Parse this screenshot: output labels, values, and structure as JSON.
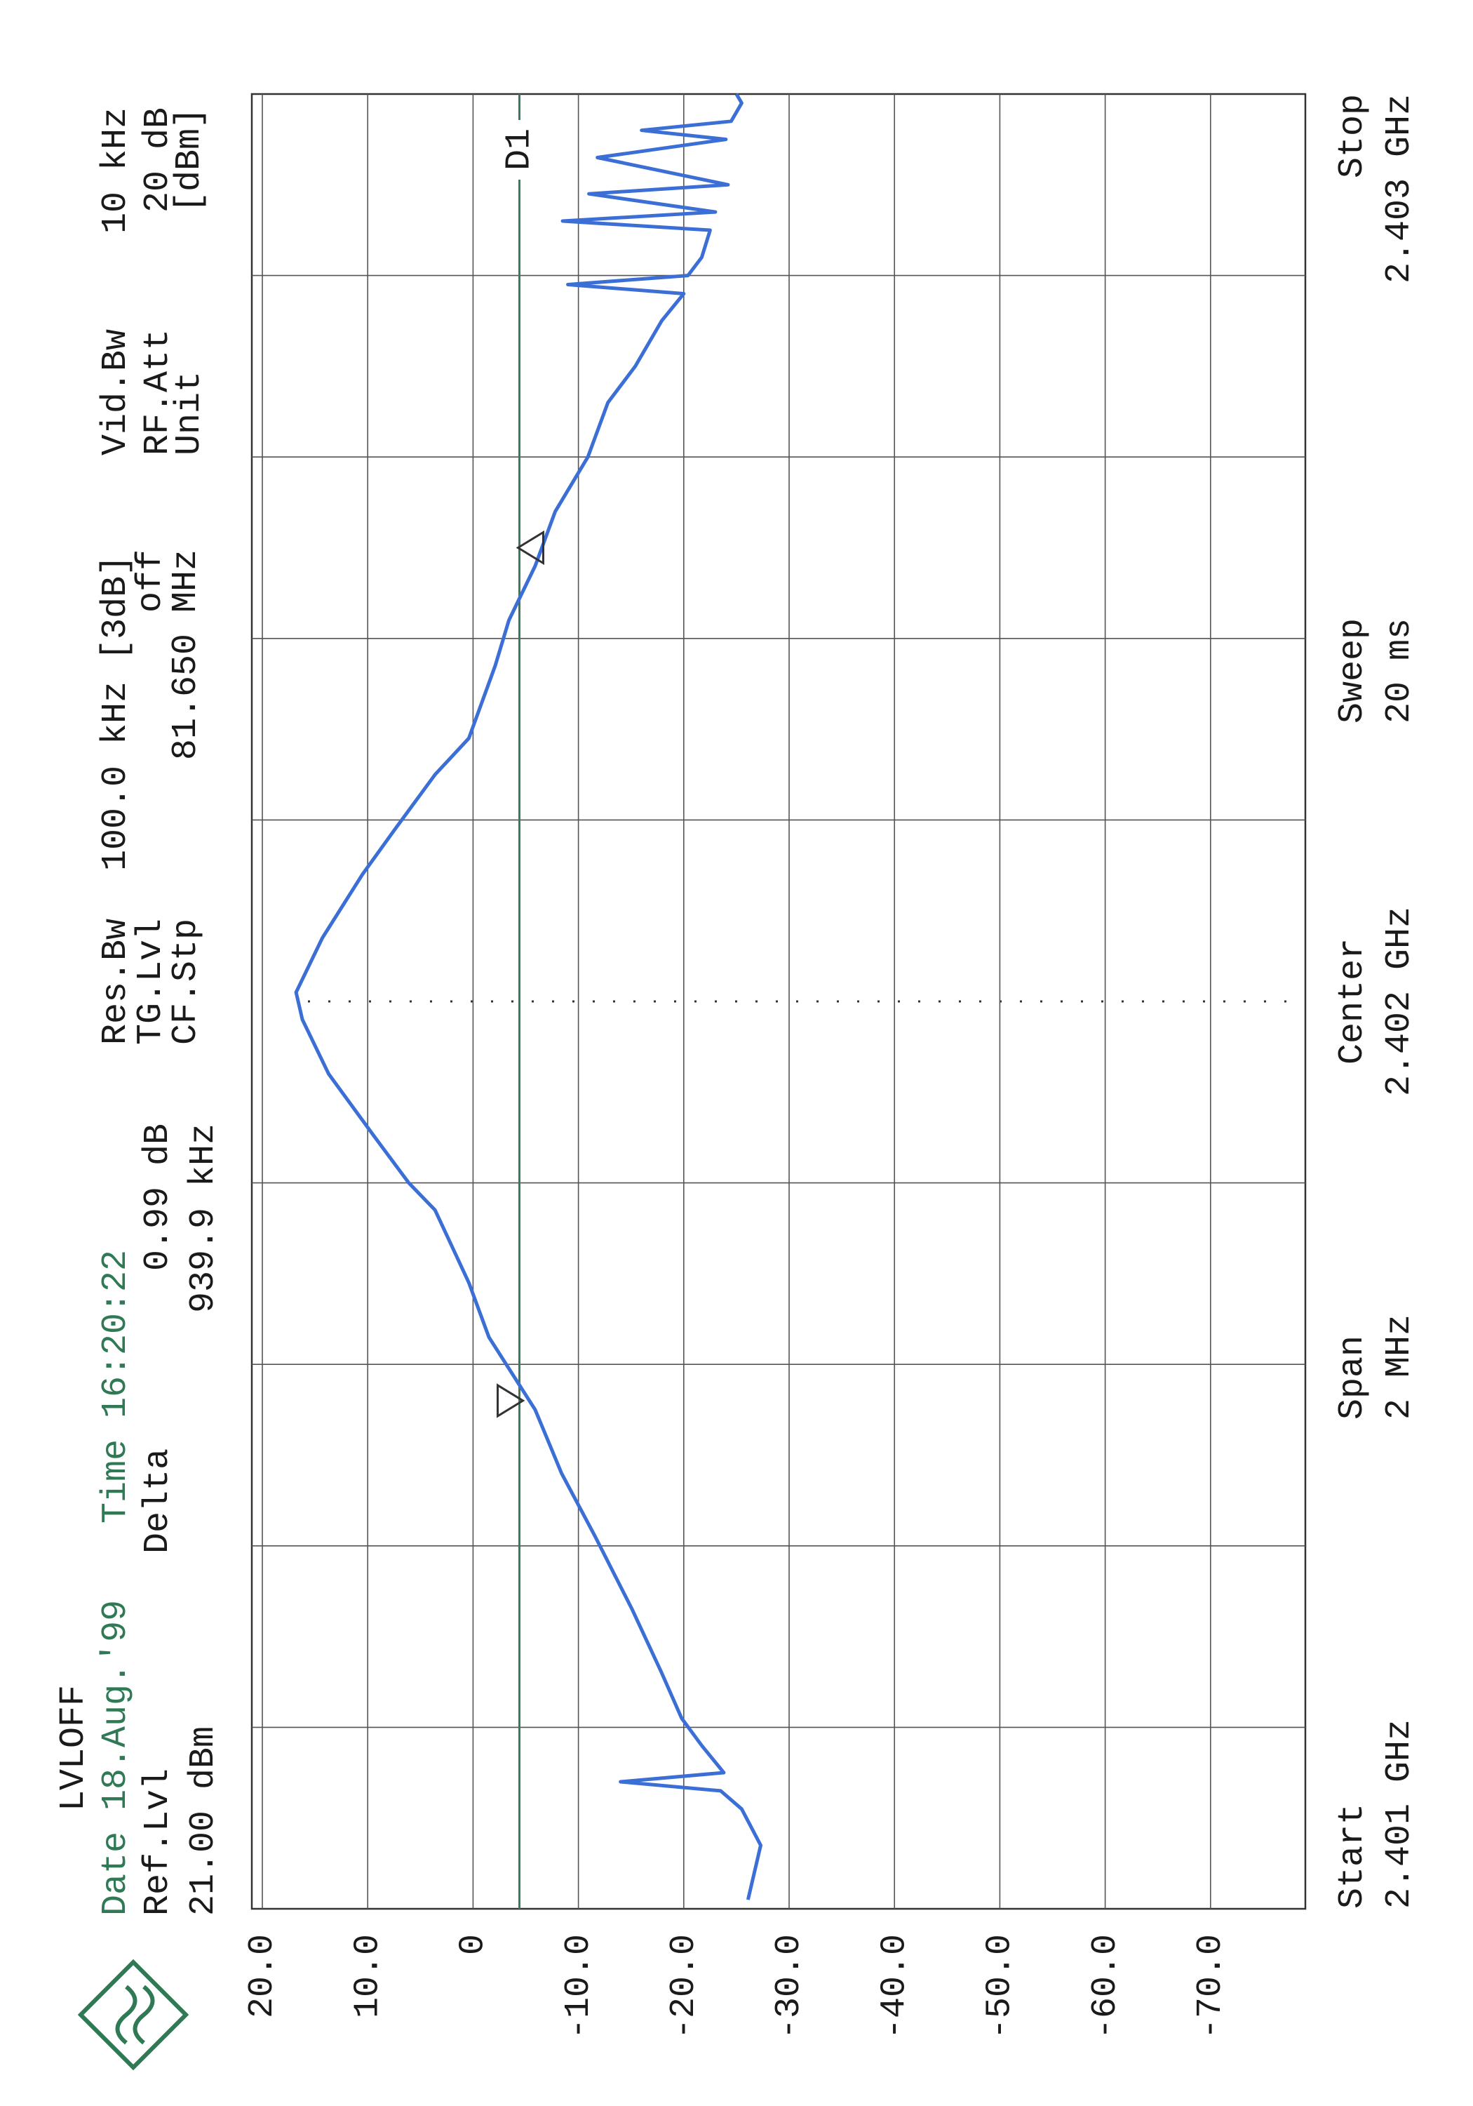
{
  "chart_data": {
    "type": "line",
    "info": {
      "level_mode": "LVLOFF",
      "date": "Date 18.Aug.'99",
      "time": "Time 16:20:22",
      "ref_lvl_label": "Ref.Lvl",
      "ref_lvl": "21.00 dBm",
      "delta_label": "Delta",
      "delta_level": "0.99 dB",
      "delta_freq": "939.9 kHz",
      "res_bw_label": "Res.Bw",
      "res_bw": "100.0 kHz [3dB]",
      "tg_lvl_label": "TG.Lvl",
      "tg_lvl": "off",
      "cf_stp_label": "CF.Stp",
      "cf_stp": "81.650 MHz",
      "vid_bw_label": "Vid.Bw",
      "vid_bw": "10 kHz",
      "rf_att_label": "RF.Att",
      "rf_att": "20 dB",
      "unit_label": "Unit",
      "unit": "[dBm]",
      "start_label": "Start",
      "span_label": "Span",
      "span": "2 MHz",
      "center_label": "Center",
      "sweep_label": "Sweep",
      "sweep": "20 ms",
      "stop_label": "Stop"
    },
    "x": [
      2.40101,
      2.40107,
      2.40111,
      2.40113,
      2.40114,
      2.40115,
      2.40118,
      2.40121,
      2.40126,
      2.40133,
      2.40141,
      2.40148,
      2.40155,
      2.40163,
      2.40169,
      2.40177,
      2.4018,
      2.40185,
      2.40192,
      2.40198,
      2.40201,
      2.40207,
      2.40214,
      2.40219,
      2.40225,
      2.40229,
      2.40237,
      2.40242,
      2.40248,
      2.40254,
      2.4026,
      2.40266,
      2.4027,
      2.40275,
      2.40278,
      2.40279,
      2.4028,
      2.40282,
      2.40285,
      2.40286,
      2.40287,
      2.40289,
      2.4029,
      2.40293,
      2.40295,
      2.40296,
      2.40297,
      2.40299,
      2.403
    ],
    "series": [
      {
        "name": "Trace 1",
        "color": "#3b6fd6",
        "values": [
          -26.1,
          -27.3,
          -25.5,
          -23.5,
          -14.0,
          -23.8,
          -21.7,
          -19.8,
          -17.9,
          -15.1,
          -11.6,
          -8.4,
          -5.9,
          -1.5,
          0.4,
          3.6,
          6.1,
          9.3,
          13.7,
          16.2,
          16.8,
          14.3,
          10.5,
          7.4,
          3.6,
          0.4,
          -2.1,
          -3.4,
          -5.9,
          -7.8,
          -10.9,
          -12.8,
          -15.4,
          -17.9,
          -20.0,
          -9.0,
          -20.4,
          -21.7,
          -22.5,
          -8.5,
          -23.0,
          -11.0,
          -24.2,
          -11.8,
          -24.0,
          -16.0,
          -24.5,
          -25.5,
          -25.0
        ]
      }
    ],
    "markers": [
      {
        "x": 2.40156,
        "y": -5.0
      },
      {
        "x": 2.4025,
        "y": -4.0
      }
    ],
    "display_line": {
      "label": "D1",
      "value": -4.4,
      "color": "#3d7a5c"
    },
    "xlim": [
      2.401,
      2.403
    ],
    "xticks": [
      {
        "value": 2.401,
        "label": "2.401 GHz"
      },
      {
        "value": 2.402,
        "label": "2.402 GHz"
      },
      {
        "value": 2.403,
        "label": "2.403 GHz"
      }
    ],
    "ylim": [
      -79,
      21
    ],
    "yticks": [
      {
        "value": 20,
        "label": "20.0"
      },
      {
        "value": 10,
        "label": "10.0"
      },
      0,
      {
        "value": -10,
        "label": "-10.0"
      },
      {
        "value": -20,
        "label": "-20.0"
      },
      {
        "value": -30,
        "label": "-30.0"
      },
      {
        "value": -40,
        "label": "-40.0"
      },
      {
        "value": -50,
        "label": "-50.0"
      },
      {
        "value": -60,
        "label": "-60.0"
      },
      {
        "value": -70,
        "label": "-70.0"
      }
    ],
    "grid": true
  }
}
